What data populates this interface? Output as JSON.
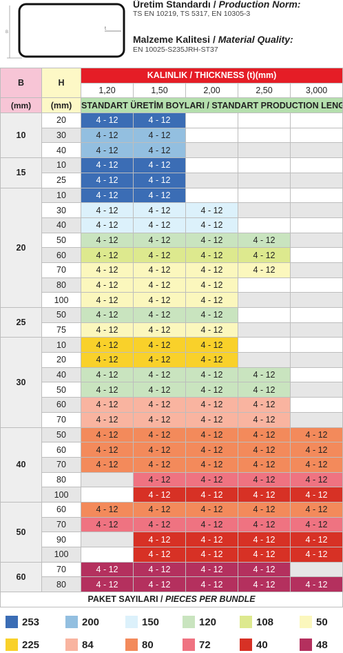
{
  "header": {
    "standard_title_tr": "Üretim Standardı / ",
    "standard_title_en": "Production Norm:",
    "standard_values": "TS EN 10219, TS 5317, EN 10305-3",
    "material_title_tr": "Malzeme Kalitesi / ",
    "material_title_en": "Material Quality:",
    "material_values": "EN 10025-S235JRH-ST37",
    "profile_label_b": "B",
    "profile_label_t": "t"
  },
  "table": {
    "col_b": "B",
    "col_h": "H",
    "unit_b": "(mm)",
    "unit_h": "(mm)",
    "thickness_title": "KALINLIK / THICKNESS (t)(mm)",
    "thicknesses": [
      "1,20",
      "1,50",
      "2,00",
      "2,50",
      "3,000"
    ],
    "production_length_title": "STANDART ÜRETİM BOYLARI / STANDART PRODUCTION LENGHT",
    "rows": [
      {
        "b": "10",
        "span": 3,
        "h": "20",
        "cells": [
          [
            "4 - 12",
            "c253"
          ],
          [
            "4 - 12",
            "c253"
          ],
          [
            "",
            "e"
          ],
          [
            "",
            "e"
          ],
          [
            "",
            "e"
          ]
        ]
      },
      {
        "h": "30",
        "cells": [
          [
            "4 - 12",
            "c200"
          ],
          [
            "4 - 12",
            "c200"
          ],
          [
            "",
            "e"
          ],
          [
            "",
            "e"
          ],
          [
            "",
            "e"
          ]
        ]
      },
      {
        "h": "40",
        "cells": [
          [
            "4 - 12",
            "c200"
          ],
          [
            "4 - 12",
            "c200"
          ],
          [
            "",
            "g"
          ],
          [
            "",
            "g"
          ],
          [
            "",
            "g"
          ]
        ]
      },
      {
        "b": "15",
        "span": 2,
        "h": "10",
        "cells": [
          [
            "4 - 12",
            "c253"
          ],
          [
            "4 - 12",
            "c253"
          ],
          [
            "",
            "e"
          ],
          [
            "",
            "e"
          ],
          [
            "",
            "e"
          ]
        ]
      },
      {
        "h": "25",
        "cells": [
          [
            "4 - 12",
            "c253"
          ],
          [
            "4 - 12",
            "c253"
          ],
          [
            "",
            "g"
          ],
          [
            "",
            "g"
          ],
          [
            "",
            "g"
          ]
        ]
      },
      {
        "b": "20",
        "span": 8,
        "h": "10",
        "cells": [
          [
            "4 - 12",
            "c253"
          ],
          [
            "4 - 12",
            "c253"
          ],
          [
            "",
            "e"
          ],
          [
            "",
            "e"
          ],
          [
            "",
            "e"
          ]
        ]
      },
      {
        "h": "30",
        "cells": [
          [
            "4 - 12",
            "c150"
          ],
          [
            "4 - 12",
            "c150"
          ],
          [
            "4 - 12",
            "c150"
          ],
          [
            "",
            "g"
          ],
          [
            "",
            "g"
          ]
        ]
      },
      {
        "h": "40",
        "cells": [
          [
            "4 - 12",
            "c150"
          ],
          [
            "4 - 12",
            "c150"
          ],
          [
            "4 - 12",
            "c150"
          ],
          [
            "",
            "e"
          ],
          [
            "",
            "e"
          ]
        ]
      },
      {
        "h": "50",
        "cells": [
          [
            "4 - 12",
            "c120"
          ],
          [
            "4 - 12",
            "c120"
          ],
          [
            "4 - 12",
            "c120"
          ],
          [
            "4 - 12",
            "c120"
          ],
          [
            "",
            "g"
          ]
        ]
      },
      {
        "h": "60",
        "cells": [
          [
            "4 - 12",
            "c108"
          ],
          [
            "4 - 12",
            "c108"
          ],
          [
            "4 - 12",
            "c108"
          ],
          [
            "4 - 12",
            "c108"
          ],
          [
            "",
            "e"
          ]
        ]
      },
      {
        "h": "70",
        "cells": [
          [
            "4 - 12",
            "c50"
          ],
          [
            "4 - 12",
            "c50"
          ],
          [
            "4 - 12",
            "c50"
          ],
          [
            "4 - 12",
            "c50"
          ],
          [
            "",
            "g"
          ]
        ]
      },
      {
        "h": "80",
        "cells": [
          [
            "4 - 12",
            "c50"
          ],
          [
            "4 - 12",
            "c50"
          ],
          [
            "4 - 12",
            "c50"
          ],
          [
            "",
            "e"
          ],
          [
            "",
            "e"
          ]
        ]
      },
      {
        "h": "100",
        "cells": [
          [
            "4 - 12",
            "c50"
          ],
          [
            "4 - 12",
            "c50"
          ],
          [
            "4 - 12",
            "c50"
          ],
          [
            "",
            "g"
          ],
          [
            "",
            "g"
          ]
        ]
      },
      {
        "b": "25",
        "span": 2,
        "h": "50",
        "cells": [
          [
            "4 - 12",
            "c120"
          ],
          [
            "4 - 12",
            "c120"
          ],
          [
            "4 - 12",
            "c120"
          ],
          [
            "",
            "e"
          ],
          [
            "",
            "e"
          ]
        ]
      },
      {
        "h": "75",
        "cells": [
          [
            "4 - 12",
            "c50"
          ],
          [
            "4 - 12",
            "c50"
          ],
          [
            "4 - 12",
            "c50"
          ],
          [
            "",
            "g"
          ],
          [
            "",
            "g"
          ]
        ]
      },
      {
        "b": "30",
        "span": 6,
        "h": "10",
        "cells": [
          [
            "4 - 12",
            "c225"
          ],
          [
            "4 - 12",
            "c225"
          ],
          [
            "4 - 12",
            "c225"
          ],
          [
            "",
            "e"
          ],
          [
            "",
            "e"
          ]
        ]
      },
      {
        "h": "20",
        "cells": [
          [
            "4 - 12",
            "c225"
          ],
          [
            "4 - 12",
            "c225"
          ],
          [
            "4 - 12",
            "c225"
          ],
          [
            "",
            "g"
          ],
          [
            "",
            "g"
          ]
        ]
      },
      {
        "h": "40",
        "cells": [
          [
            "4 - 12",
            "c120"
          ],
          [
            "4 - 12",
            "c120"
          ],
          [
            "4 - 12",
            "c120"
          ],
          [
            "4 - 12",
            "c120"
          ],
          [
            "",
            "e"
          ]
        ]
      },
      {
        "h": "50",
        "cells": [
          [
            "4 - 12",
            "c120"
          ],
          [
            "4 - 12",
            "c120"
          ],
          [
            "4 - 12",
            "c120"
          ],
          [
            "4 - 12",
            "c120"
          ],
          [
            "",
            "g"
          ]
        ]
      },
      {
        "h": "60",
        "cells": [
          [
            "4 - 12",
            "c84"
          ],
          [
            "4 - 12",
            "c84"
          ],
          [
            "4 - 12",
            "c84"
          ],
          [
            "4 - 12",
            "c84"
          ],
          [
            "",
            "e"
          ]
        ]
      },
      {
        "h": "70",
        "cells": [
          [
            "4 - 12",
            "c84"
          ],
          [
            "4 - 12",
            "c84"
          ],
          [
            "4 - 12",
            "c84"
          ],
          [
            "4 - 12",
            "c84"
          ],
          [
            "",
            "g"
          ]
        ]
      },
      {
        "b": "40",
        "span": 5,
        "h": "50",
        "cells": [
          [
            "4 - 12",
            "c80"
          ],
          [
            "4 - 12",
            "c80"
          ],
          [
            "4 - 12",
            "c80"
          ],
          [
            "4 - 12",
            "c80"
          ],
          [
            "4 - 12",
            "c80"
          ]
        ]
      },
      {
        "h": "60",
        "cells": [
          [
            "4 - 12",
            "c80"
          ],
          [
            "4 - 12",
            "c80"
          ],
          [
            "4 - 12",
            "c80"
          ],
          [
            "4 - 12",
            "c80"
          ],
          [
            "4 - 12",
            "c80"
          ]
        ]
      },
      {
        "h": "70",
        "cells": [
          [
            "4 - 12",
            "c80"
          ],
          [
            "4 - 12",
            "c80"
          ],
          [
            "4 - 12",
            "c80"
          ],
          [
            "4 - 12",
            "c80"
          ],
          [
            "4 - 12",
            "c80"
          ]
        ]
      },
      {
        "h": "80",
        "cells": [
          [
            "",
            "g"
          ],
          [
            "4 - 12",
            "c72"
          ],
          [
            "4 - 12",
            "c72"
          ],
          [
            "4 - 12",
            "c72"
          ],
          [
            "4 - 12",
            "c72"
          ]
        ]
      },
      {
        "h": "100",
        "cells": [
          [
            "",
            "e"
          ],
          [
            "4 - 12",
            "c40"
          ],
          [
            "4 - 12",
            "c40"
          ],
          [
            "4 - 12",
            "c40"
          ],
          [
            "4 - 12",
            "c40"
          ]
        ]
      },
      {
        "b": "50",
        "span": 4,
        "h": "60",
        "cells": [
          [
            "4 - 12",
            "c80"
          ],
          [
            "4 - 12",
            "c80"
          ],
          [
            "4 - 12",
            "c80"
          ],
          [
            "4 - 12",
            "c80"
          ],
          [
            "4 - 12",
            "c80"
          ]
        ]
      },
      {
        "h": "70",
        "cells": [
          [
            "4 - 12",
            "c72"
          ],
          [
            "4 - 12",
            "c72"
          ],
          [
            "4 - 12",
            "c72"
          ],
          [
            "4 - 12",
            "c72"
          ],
          [
            "4 - 12",
            "c72"
          ]
        ]
      },
      {
        "h": "90",
        "cells": [
          [
            "",
            "g"
          ],
          [
            "4 - 12",
            "c40"
          ],
          [
            "4 - 12",
            "c40"
          ],
          [
            "4 - 12",
            "c40"
          ],
          [
            "4 - 12",
            "c40"
          ]
        ]
      },
      {
        "h": "100",
        "cells": [
          [
            "",
            "e"
          ],
          [
            "4 - 12",
            "c40"
          ],
          [
            "4 - 12",
            "c40"
          ],
          [
            "4 - 12",
            "c40"
          ],
          [
            "4 - 12",
            "c40"
          ]
        ]
      },
      {
        "b": "60",
        "span": 2,
        "h": "70",
        "cells": [
          [
            "4 - 12",
            "c48"
          ],
          [
            "4 - 12",
            "c48"
          ],
          [
            "4 - 12",
            "c48"
          ],
          [
            "4 - 12",
            "c48"
          ],
          [
            "",
            "g"
          ]
        ]
      },
      {
        "h": "80",
        "cells": [
          [
            "4 - 12",
            "c48"
          ],
          [
            "4 - 12",
            "c48"
          ],
          [
            "4 - 12",
            "c48"
          ],
          [
            "4 - 12",
            "c48"
          ],
          [
            "4 - 12",
            "c48"
          ]
        ]
      }
    ],
    "bundle_title_tr": "PAKET SAYILARI / ",
    "bundle_title_en": "PIECES PER BUNDLE"
  },
  "legend": [
    {
      "value": "253",
      "color": "#3b6db5"
    },
    {
      "value": "200",
      "color": "#93bfe0"
    },
    {
      "value": "150",
      "color": "#dcf1fb"
    },
    {
      "value": "120",
      "color": "#c9e4bf"
    },
    {
      "value": "108",
      "color": "#dde98e"
    },
    {
      "value": "50",
      "color": "#fbf7bd"
    },
    {
      "value": "225",
      "color": "#f9d12a"
    },
    {
      "value": "84",
      "color": "#f9b4a0"
    },
    {
      "value": "80",
      "color": "#f38a5b"
    },
    {
      "value": "72",
      "color": "#ef7381"
    },
    {
      "value": "40",
      "color": "#d73125"
    },
    {
      "value": "48",
      "color": "#b4305e"
    }
  ]
}
